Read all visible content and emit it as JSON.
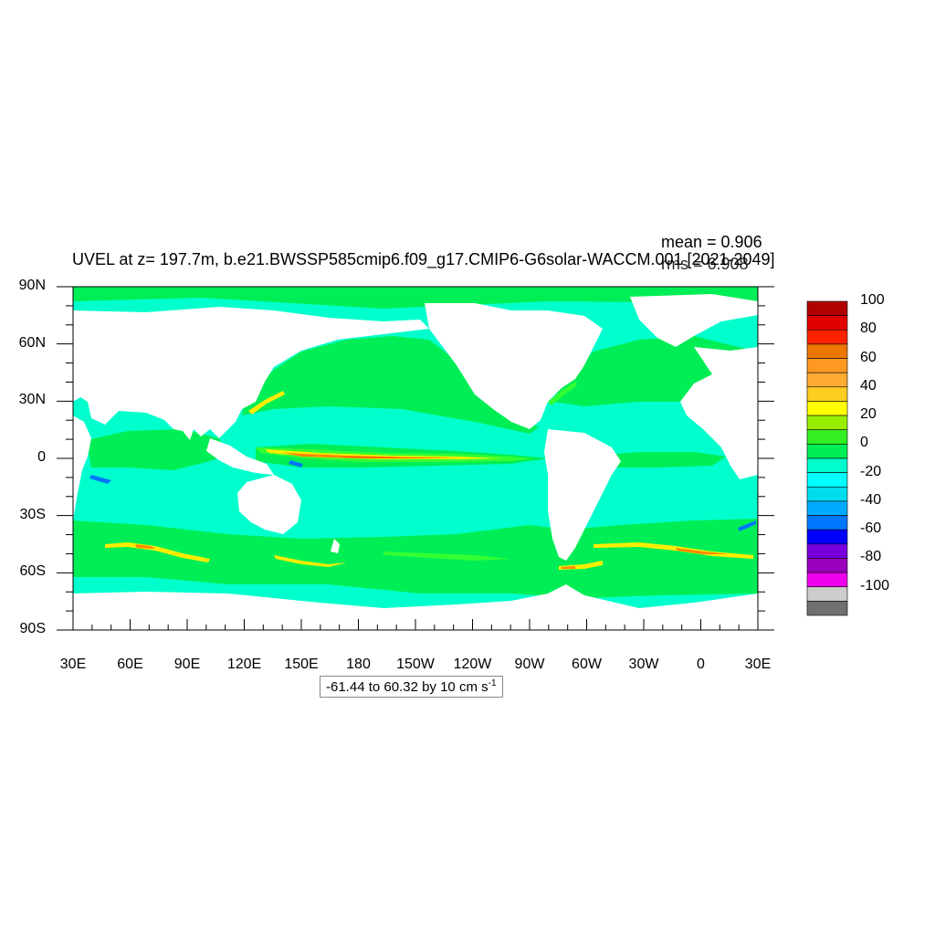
{
  "title": "UVEL at z= 197.7m, b.e21.BWSSP585cmip6.f09_g17.CMIP6-G6solar-WACCM.001 [2021-2049]",
  "stats": {
    "mean": "mean = 0.906",
    "rms": "rms = 6.908"
  },
  "range_box": {
    "text": "-61.44 to 60.32 by 10 cm s",
    "superscript": "-1"
  },
  "colors": {
    "land": "#ffffff",
    "ocean_base": "#00ffcc",
    "positive_band": "#00ee55",
    "jet_green": "#33ff33",
    "jet_yellow": "#ffee00",
    "jet_orange": "#ff8800",
    "jet_red": "#ff4400",
    "negative": "#0077ff"
  },
  "chart_data": {
    "type": "heatmap",
    "variable": "UVEL",
    "depth": "z= 197.7m",
    "projection": "cylindrical-equidistant",
    "lon_range": [
      30,
      390
    ],
    "lat_range": [
      -90,
      90
    ],
    "x_ticks": [
      "30E",
      "60E",
      "90E",
      "120E",
      "150E",
      "180",
      "150W",
      "120W",
      "90W",
      "60W",
      "30W",
      "0",
      "30E"
    ],
    "x_tick_values": [
      30,
      60,
      90,
      120,
      150,
      180,
      210,
      240,
      270,
      300,
      330,
      360,
      390
    ],
    "y_ticks": [
      "90N",
      "60N",
      "30N",
      "0",
      "30S",
      "60S",
      "90S"
    ],
    "y_tick_values": [
      90,
      60,
      30,
      0,
      -30,
      -60,
      -90
    ],
    "colorbar": {
      "labels": [
        "100",
        "80",
        "60",
        "40",
        "20",
        "0",
        "-20",
        "-40",
        "-60",
        "-80",
        "-100"
      ],
      "levels": [
        100,
        90,
        80,
        70,
        60,
        50,
        40,
        30,
        20,
        10,
        0,
        -10,
        -20,
        -30,
        -40,
        -50,
        -60,
        -70,
        -80,
        -90,
        -100
      ],
      "colors": [
        "#b00000",
        "#e00000",
        "#ff2200",
        "#ee7700",
        "#ff9922",
        "#ffaa33",
        "#ffcc22",
        "#ffff00",
        "#99ee00",
        "#33ee22",
        "#00ee55",
        "#00ffcc",
        "#00ffff",
        "#00ddee",
        "#00aaff",
        "#0077ff",
        "#0000ff",
        "#7700dd",
        "#9900bb",
        "#ee00ee",
        "#cccccc",
        "#707070"
      ]
    },
    "mean": 0.906,
    "rms": 6.908,
    "min": -61.44,
    "max": 60.32,
    "contour_interval": 10,
    "units": "cm s-1"
  }
}
